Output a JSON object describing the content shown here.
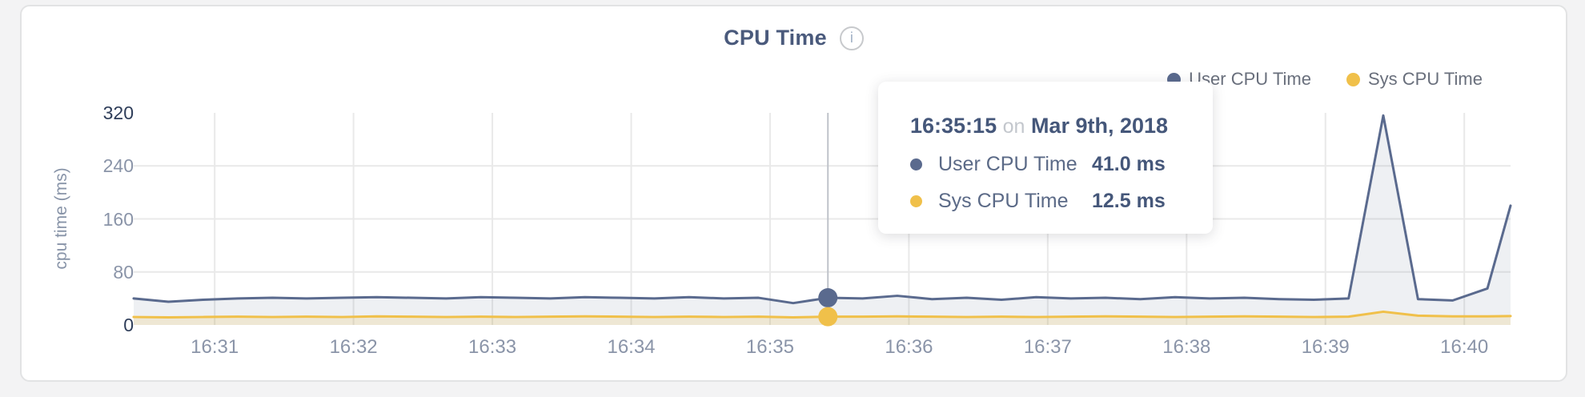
{
  "card": {
    "title": "CPU Time",
    "info_icon": "i"
  },
  "legend": [
    {
      "label": "User CPU Time",
      "color": "#5a6a8e"
    },
    {
      "label": "Sys CPU Time",
      "color": "#f0c04a"
    }
  ],
  "tooltip": {
    "time": "16:35:15",
    "connector": "on",
    "date": "Mar 9th, 2018",
    "rows": [
      {
        "label": "User CPU Time",
        "value": "41.0 ms",
        "color": "#5a6a8e"
      },
      {
        "label": "Sys CPU Time",
        "value": "12.5 ms",
        "color": "#f0c04a"
      }
    ]
  },
  "chart_data": {
    "type": "area",
    "title": "CPU Time",
    "xlabel": "",
    "ylabel": "cpu time (ms)",
    "ylim": [
      0,
      320
    ],
    "y_ticks": [
      320,
      240,
      160,
      80,
      0
    ],
    "grid": true,
    "legend_position": "top-right",
    "x_domain_sec": 595,
    "x_ticks": [
      "16:31",
      "16:32",
      "16:33",
      "16:34",
      "16:35",
      "16:36",
      "16:37",
      "16:38",
      "16:39",
      "16:40"
    ],
    "x_tick_offsets_sec": [
      35,
      95,
      155,
      215,
      275,
      335,
      395,
      455,
      515,
      575
    ],
    "x_offsets_sec": [
      0,
      15,
      30,
      45,
      60,
      75,
      90,
      105,
      120,
      135,
      150,
      165,
      180,
      195,
      210,
      225,
      240,
      255,
      270,
      285,
      300,
      315,
      330,
      345,
      360,
      375,
      390,
      405,
      420,
      435,
      450,
      465,
      480,
      495,
      510,
      525,
      540,
      555,
      570,
      585,
      595
    ],
    "series": [
      {
        "name": "User CPU Time",
        "color": "#5a6a8e",
        "fill": "rgba(90,106,142,0.10)",
        "values": [
          40,
          35,
          38,
          40,
          41,
          40,
          41,
          42,
          41,
          40,
          42,
          41,
          40,
          42,
          41,
          40,
          42,
          40,
          41,
          33,
          41,
          40,
          44,
          39,
          41,
          38,
          42,
          40,
          41,
          39,
          42,
          40,
          41,
          39,
          38,
          40,
          316,
          39,
          37,
          55,
          180
        ]
      },
      {
        "name": "Sys CPU Time",
        "color": "#f0c04a",
        "fill": "rgba(240,192,74,0.18)",
        "values": [
          12,
          11.5,
          12,
          12.5,
          12,
          12.5,
          12,
          13,
          12.5,
          12,
          12.5,
          12,
          12.5,
          13,
          12.5,
          12,
          12.5,
          12,
          12.5,
          11.5,
          12.5,
          12.5,
          13,
          12.5,
          12,
          12.5,
          12,
          12.5,
          13,
          12.5,
          12,
          12.5,
          13,
          12.5,
          12,
          12.5,
          20,
          14,
          13,
          13,
          13.5
        ]
      }
    ],
    "highlight_index": 20,
    "highlight_values_ms": {
      "user": 41.0,
      "sys": 12.5
    },
    "colors": {
      "grid": "#e9e9e9",
      "crosshair": "#bfc3ca",
      "axis_text": "#8a94a8",
      "axis_text_dark": "#2e3d59"
    }
  }
}
